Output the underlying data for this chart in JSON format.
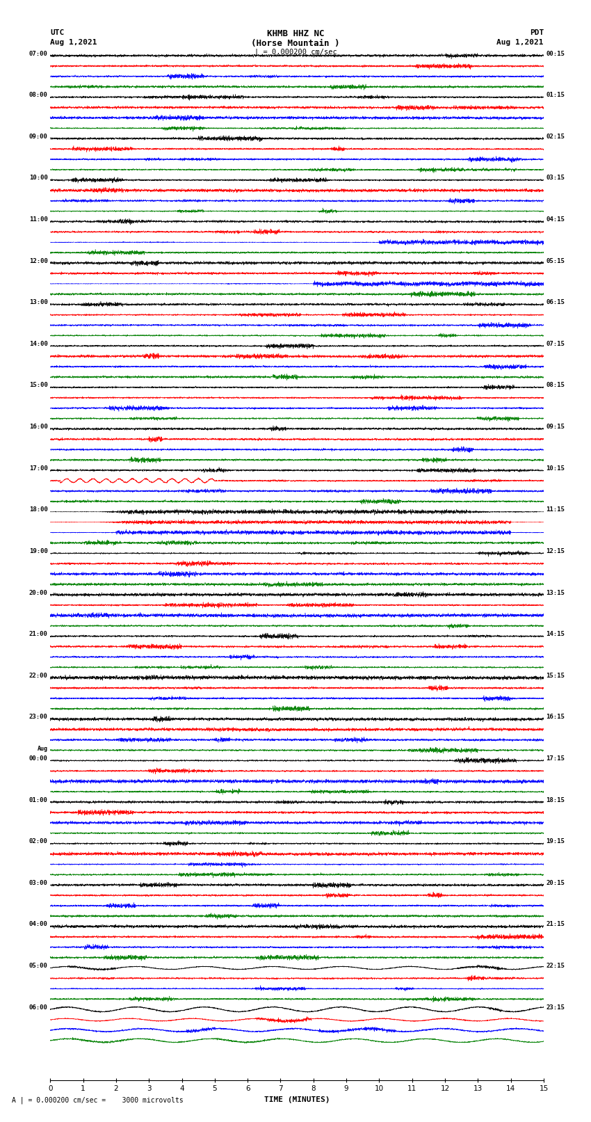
{
  "title_line1": "KHMB HHZ NC",
  "title_line2": "(Horse Mountain )",
  "title_line3": "| = 0.000200 cm/sec",
  "left_header_line1": "UTC",
  "left_header_line2": "Aug 1,2021",
  "right_header_line1": "PDT",
  "right_header_line2": "Aug 1,2021",
  "xlabel": "TIME (MINUTES)",
  "footer": "A | = 0.000200 cm/sec =    3000 microvolts",
  "utc_times": [
    "07:00",
    "08:00",
    "09:00",
    "10:00",
    "11:00",
    "12:00",
    "13:00",
    "14:00",
    "15:00",
    "16:00",
    "17:00",
    "18:00",
    "19:00",
    "20:00",
    "21:00",
    "22:00",
    "23:00",
    "Aug\n00:00",
    "01:00",
    "02:00",
    "03:00",
    "04:00",
    "05:00",
    "06:00"
  ],
  "pdt_times": [
    "00:15",
    "01:15",
    "02:15",
    "03:15",
    "04:15",
    "05:15",
    "06:15",
    "07:15",
    "08:15",
    "09:15",
    "10:15",
    "11:15",
    "12:15",
    "13:15",
    "14:15",
    "15:15",
    "16:15",
    "17:15",
    "18:15",
    "19:15",
    "20:15",
    "21:15",
    "22:15",
    "23:15"
  ],
  "n_rows": 24,
  "traces_per_row": 4,
  "colors": [
    "black",
    "red",
    "blue",
    "green"
  ],
  "fig_width": 8.5,
  "fig_height": 16.13,
  "dpi": 100,
  "background_color": "white"
}
